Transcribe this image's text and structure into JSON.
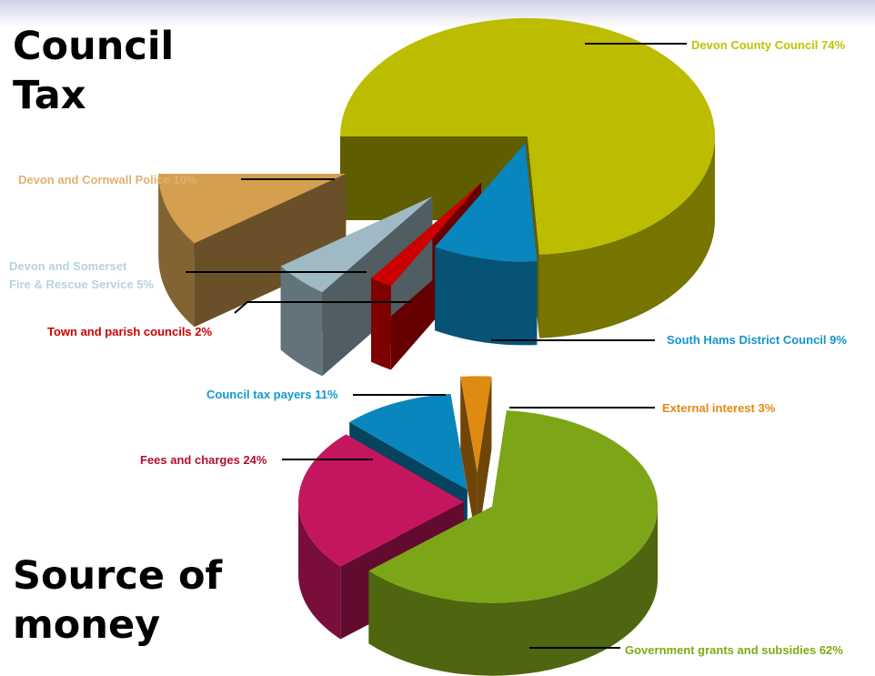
{
  "headings": {
    "council_tax": "Council\nTax",
    "source_of_money": "Source of\nmoney"
  },
  "chart_data": [
    {
      "type": "pie",
      "title": "Council Tax",
      "style": "3d-exploded",
      "slices": [
        {
          "label": "Devon County Council 74%",
          "value": 74,
          "color": "#bcbc00"
        },
        {
          "label": "South Hams District Council 9%",
          "value": 9,
          "color": "#0a86be"
        },
        {
          "label": "Town and parish councils 2%",
          "value": 2,
          "color": "#cc0000"
        },
        {
          "label": "Devon and Somerset\nFire & Rescue Service 5%",
          "value": 5,
          "color": "#9fbac4"
        },
        {
          "label": "Devon and Cornwall Police 10%",
          "value": 10,
          "color": "#d4a050"
        }
      ],
      "label_colors": [
        "#c2c200",
        "#1494cc",
        "#cc0000",
        "#b7d3de",
        "#e0b070"
      ]
    },
    {
      "type": "pie",
      "title": "Source of money",
      "style": "3d-exploded",
      "slices": [
        {
          "label": "Government grants and subsidies 62%",
          "value": 62,
          "color": "#7da518"
        },
        {
          "label": "Fees and charges 24%",
          "value": 24,
          "color": "#c4165e"
        },
        {
          "label": "Council tax payers 11%",
          "value": 11,
          "color": "#0a86be"
        },
        {
          "label": "External interest 3%",
          "value": 3,
          "color": "#df8a12"
        }
      ],
      "label_colors": [
        "#7cab10",
        "#b01030",
        "#129ad0",
        "#e28a10"
      ]
    }
  ]
}
